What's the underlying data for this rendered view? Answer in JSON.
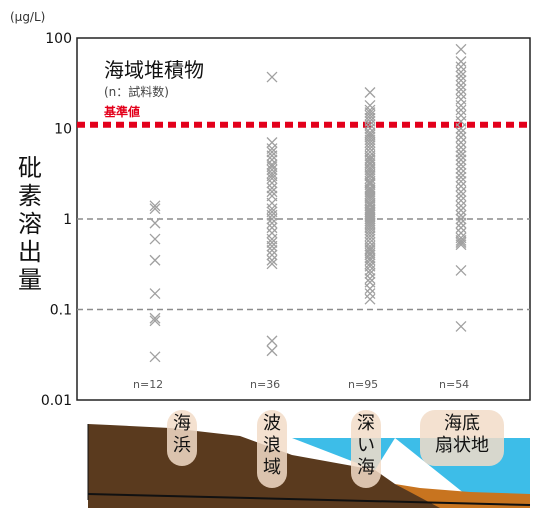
{
  "chart_data": {
    "type": "scatter",
    "unit_label": "(μg/L)",
    "ylabel": "砒素溶出量",
    "yscale": "log",
    "ylim": [
      0.01,
      100
    ],
    "y_ticks": [
      "100",
      "10",
      "1",
      "0.1",
      "0.01"
    ],
    "legend_title": "海域堆積物",
    "legend_subtitle": "(n：試料数)",
    "threshold": {
      "label": "基準値",
      "value": 11,
      "color": "#e3001b"
    },
    "categories": [
      {
        "label": "海浜",
        "count_label": "n=12",
        "values": [
          1.4,
          1.3,
          0.9,
          0.6,
          0.35,
          0.15,
          0.08,
          0.075,
          0.03
        ]
      },
      {
        "label": "波浪域",
        "count_label": "n=36",
        "values": [
          37,
          7,
          6,
          5.5,
          5,
          4.5,
          4,
          3.8,
          3.5,
          3.2,
          3,
          2.8,
          2.5,
          2.2,
          2,
          1.8,
          1.5,
          1.3,
          1.2,
          1.1,
          1,
          0.9,
          0.8,
          0.7,
          0.6,
          0.55,
          0.5,
          0.45,
          0.4,
          0.35,
          0.32,
          0.045,
          0.035
        ]
      },
      {
        "label": "深い海",
        "count_label": "n=95",
        "values": [
          25,
          18,
          16,
          15,
          14,
          13,
          12,
          11,
          10,
          9,
          8.5,
          8,
          7.5,
          7,
          6.5,
          6,
          5.5,
          5,
          4.7,
          4.5,
          4.2,
          4,
          3.7,
          3.5,
          3.3,
          3.1,
          3,
          2.8,
          2.6,
          2.5,
          2.4,
          2.2,
          2.1,
          2,
          1.9,
          1.8,
          1.7,
          1.6,
          1.5,
          1.45,
          1.4,
          1.3,
          1.25,
          1.2,
          1.15,
          1.1,
          1.05,
          1,
          0.95,
          0.9,
          0.85,
          0.8,
          0.75,
          0.7,
          0.65,
          0.6,
          0.55,
          0.5,
          0.47,
          0.45,
          0.42,
          0.4,
          0.37,
          0.35,
          0.32,
          0.3,
          0.27,
          0.25,
          0.22,
          0.2,
          0.17,
          0.15,
          0.13
        ]
      },
      {
        "label": "海底扇状地",
        "count_label": "n=54",
        "values": [
          75,
          55,
          48,
          42,
          38,
          34,
          30,
          27,
          24,
          21,
          18,
          16,
          14,
          12,
          10,
          9,
          8,
          7,
          6.2,
          5.5,
          5,
          4.5,
          4,
          3.6,
          3.2,
          2.9,
          2.6,
          2.3,
          2,
          1.8,
          1.6,
          1.4,
          1.25,
          1.1,
          1,
          0.9,
          0.8,
          0.7,
          0.62,
          0.58,
          0.55,
          0.52,
          0.27,
          0.065
        ]
      }
    ],
    "grid": "dashed at 0.1, 1",
    "colors": {
      "marker": "#a0a0a0",
      "grid": "#8c8c8c",
      "threshold": "#e3001b",
      "sea": "#3dbde8",
      "ground": "#5a3a1e",
      "sediment": "#c8741f",
      "label_bubble": "#f2dcc8"
    }
  }
}
